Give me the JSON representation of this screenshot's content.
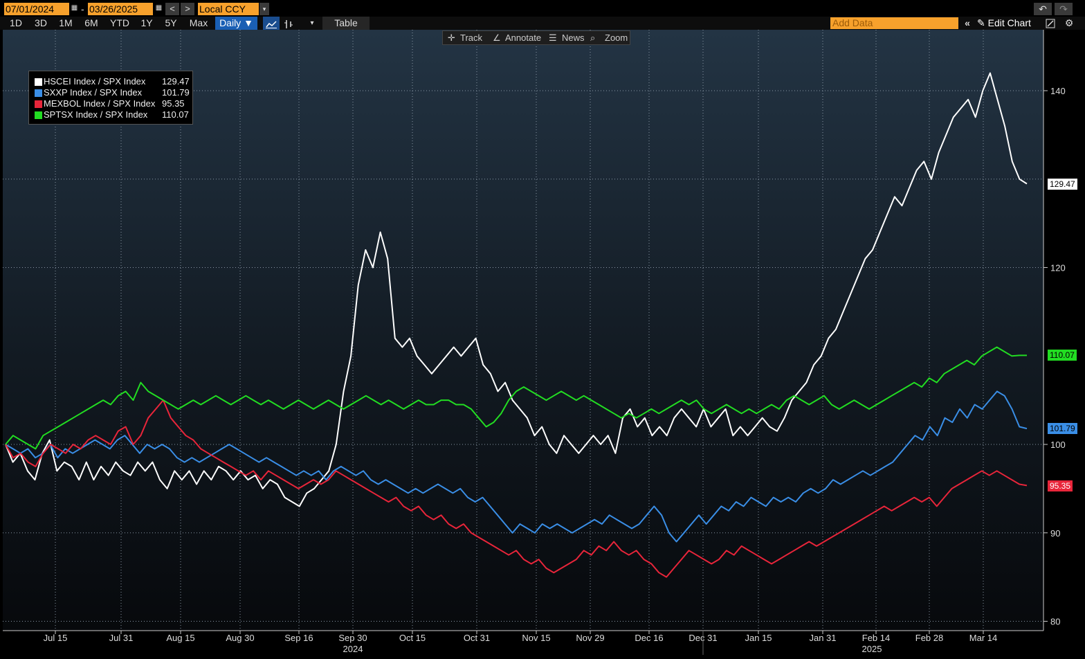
{
  "header": {
    "start_date": "07/01/2024",
    "end_date": "03/26/2025",
    "date_separator": "-",
    "currency": "Local CCY",
    "prev_glyph": "<",
    "next_glyph": ">",
    "undo_glyph": "↶",
    "redo_glyph": "↷",
    "calendar_glyph": "▦",
    "dropdown_glyph": "▾"
  },
  "timeframes": [
    "1D",
    "3D",
    "1M",
    "6M",
    "YTD",
    "1Y",
    "5Y",
    "Max"
  ],
  "frequency": "Daily ▼",
  "table_label": "Table",
  "add_data_placeholder": "Add Data",
  "edit_chart_label": "Edit Chart",
  "chart_tools": {
    "track": "Track",
    "annotate": "Annotate",
    "news": "News",
    "zoom": "Zoom"
  },
  "legend": [
    {
      "name": "HSCEI Index / SPX Index",
      "value": "129.47",
      "color": "#ffffff"
    },
    {
      "name": "SXXP Index / SPX Index",
      "value": "101.79",
      "color": "#3a8ee6"
    },
    {
      "name": "MEXBOL Index / SPX Index",
      "value": "95.35",
      "color": "#e8253a"
    },
    {
      "name": "SPTSX Index / SPX Index",
      "value": "110.07",
      "color": "#22dd22"
    }
  ],
  "colors": {
    "accent_orange": "#f7a12c",
    "active_blue": "#1a5fb4",
    "hscei": "#ffffff",
    "sxxp": "#3a8ee6",
    "mexbol": "#e8253a",
    "sptsx": "#22dd22"
  },
  "chart_data": {
    "type": "line",
    "ylim": [
      80,
      145
    ],
    "yticks": [
      80,
      90,
      100,
      120,
      140
    ],
    "x_tick_labels": [
      "Jul 15",
      "Jul 31",
      "Aug 15",
      "Aug 30",
      "Sep 16",
      "Sep 30",
      "Oct 15",
      "Oct 31",
      "Nov 15",
      "Nov 29",
      "Dec 16",
      "Dec 31",
      "Jan 15",
      "Jan 31",
      "Feb 14",
      "Feb 28",
      "Mar 14"
    ],
    "year_labels": [
      "2024",
      "2025"
    ],
    "last_values": [
      "129.47",
      "101.79",
      "95.35",
      "110.07"
    ],
    "series": [
      {
        "name": "HSCEI Index / SPX Index",
        "key": "hscei",
        "values": [
          100,
          98,
          99,
          97,
          96,
          99,
          100.5,
          97,
          98,
          97.5,
          96,
          98,
          96,
          97.5,
          96.5,
          98,
          97,
          96.5,
          98,
          97,
          98,
          96,
          95,
          97,
          96,
          97,
          95.5,
          97,
          96,
          97.5,
          97,
          96,
          97,
          96,
          96.5,
          95,
          96,
          95.5,
          94,
          93.5,
          93,
          94.5,
          95,
          96,
          97,
          100,
          106,
          110,
          118,
          122,
          120,
          124,
          121,
          112,
          111,
          112,
          110,
          109,
          108,
          109,
          110,
          111,
          110,
          111,
          112,
          109,
          108,
          106,
          107,
          105,
          104,
          103,
          101,
          102,
          100,
          99,
          101,
          100,
          99,
          100,
          101,
          100,
          101,
          99,
          103,
          104,
          102,
          103,
          101,
          102,
          101,
          103,
          104,
          103,
          102,
          104,
          102,
          103,
          104,
          101,
          102,
          101,
          102,
          103,
          102,
          101.5,
          103,
          105,
          106,
          107,
          109,
          110,
          112,
          113,
          115,
          117,
          119,
          121,
          122,
          124,
          126,
          128,
          127,
          129,
          131,
          132,
          130,
          133,
          135,
          137,
          138,
          139,
          137,
          140,
          142,
          139,
          136,
          132,
          130,
          129.47
        ]
      },
      {
        "name": "SXXP Index / SPX Index",
        "key": "sxxp",
        "values": [
          100,
          99.5,
          99,
          99.5,
          98.5,
          99,
          100,
          98.5,
          99.5,
          99,
          99.5,
          100,
          100.5,
          100,
          99.5,
          100.5,
          101,
          100,
          99,
          100,
          99.5,
          100,
          99.5,
          98.5,
          98,
          98.5,
          98,
          98.5,
          99,
          99.5,
          100,
          99.5,
          99,
          98.5,
          98,
          98.5,
          98,
          97.5,
          97,
          96.5,
          97,
          96.5,
          97,
          96,
          97,
          97.5,
          97,
          96.5,
          97,
          96,
          95.5,
          96,
          95.5,
          95,
          94.5,
          95,
          94.5,
          95,
          95.5,
          95,
          94.5,
          95,
          94,
          93.5,
          94,
          93,
          92,
          91,
          90,
          91,
          90.5,
          90,
          91,
          90.5,
          91,
          90.5,
          90,
          90.5,
          91,
          91.5,
          91,
          92,
          91.5,
          91,
          90.5,
          91,
          92,
          93,
          92,
          90,
          89,
          90,
          91,
          92,
          91,
          92,
          93,
          92.5,
          93.5,
          93,
          94,
          93.5,
          93,
          94,
          93.5,
          94,
          93.5,
          94.5,
          95,
          94.5,
          95,
          96,
          95.5,
          96,
          96.5,
          97,
          96.5,
          97,
          97.5,
          98,
          99,
          100,
          101,
          100.5,
          102,
          101,
          103,
          102.5,
          104,
          103,
          104.5,
          104,
          105,
          106,
          105.5,
          104,
          102,
          101.79
        ]
      },
      {
        "name": "MEXBOL Index / SPX Index",
        "key": "mexbol",
        "values": [
          100,
          98.5,
          99,
          98,
          97.5,
          99,
          100,
          99.5,
          99,
          100,
          99.5,
          100.5,
          101,
          100.5,
          100,
          101.5,
          102,
          100,
          101,
          103,
          104,
          105,
          103,
          102,
          101,
          100.5,
          99.5,
          99,
          98.5,
          98,
          97.5,
          97,
          96.5,
          97,
          96,
          97,
          96.5,
          96,
          95.5,
          95,
          95.5,
          96,
          95.5,
          96,
          97,
          96.5,
          96,
          95.5,
          95,
          94.5,
          94,
          93.5,
          94,
          93,
          92.5,
          93,
          92,
          91.5,
          92,
          91,
          90.5,
          91,
          90,
          89.5,
          89,
          88.5,
          88,
          87.5,
          88,
          87,
          86.5,
          87,
          86,
          85.5,
          86,
          86.5,
          87,
          88,
          87.5,
          88.5,
          88,
          89,
          88,
          87.5,
          88,
          87,
          86.5,
          85.5,
          85,
          86,
          87,
          88,
          87.5,
          87,
          86.5,
          87,
          88,
          87.5,
          88.5,
          88,
          87.5,
          87,
          86.5,
          87,
          87.5,
          88,
          88.5,
          89,
          88.5,
          89,
          89.5,
          90,
          90.5,
          91,
          91.5,
          92,
          92.5,
          93,
          92.5,
          93,
          93.5,
          94,
          93.5,
          94,
          93,
          94,
          95,
          95.5,
          96,
          96.5,
          97,
          96.5,
          97,
          96.5,
          96,
          95.5,
          95.35
        ]
      },
      {
        "name": "SPTSX Index / SPX Index",
        "key": "sptsx",
        "values": [
          100,
          101,
          100.5,
          100,
          99.5,
          101,
          101.5,
          102,
          102.5,
          103,
          103.5,
          104,
          104.5,
          105,
          104.5,
          105.5,
          106,
          105,
          107,
          106,
          105.5,
          105,
          104.5,
          104,
          104.5,
          105,
          104.5,
          105,
          105.5,
          105,
          104.5,
          105,
          105.5,
          105,
          104.5,
          105,
          104.5,
          104,
          104.5,
          105,
          104.5,
          104,
          104.5,
          105,
          104.5,
          104,
          104.5,
          105,
          105.5,
          105,
          104.5,
          105,
          104.5,
          104,
          104.5,
          105,
          104.5,
          104.5,
          105,
          105,
          104.5,
          104.5,
          104,
          103,
          102,
          102.5,
          103.5,
          105,
          106,
          106.5,
          106,
          105.5,
          105,
          105.5,
          106,
          105.5,
          105,
          105.5,
          105,
          104.5,
          104,
          103.5,
          103,
          103.5,
          103,
          103.5,
          104,
          103.5,
          104,
          104.5,
          105,
          104.5,
          105,
          104,
          103.5,
          104,
          104.5,
          104,
          103.5,
          104,
          103.5,
          104,
          104.5,
          104,
          105,
          105.5,
          105,
          104.5,
          105,
          105.5,
          104.5,
          104,
          104.5,
          105,
          104.5,
          104,
          104.5,
          105,
          105.5,
          106,
          106.5,
          107,
          106.5,
          107.5,
          107,
          108,
          108.5,
          109,
          109.5,
          109,
          110,
          110.5,
          111,
          110.5,
          110,
          110.07,
          110.07
        ]
      }
    ]
  }
}
